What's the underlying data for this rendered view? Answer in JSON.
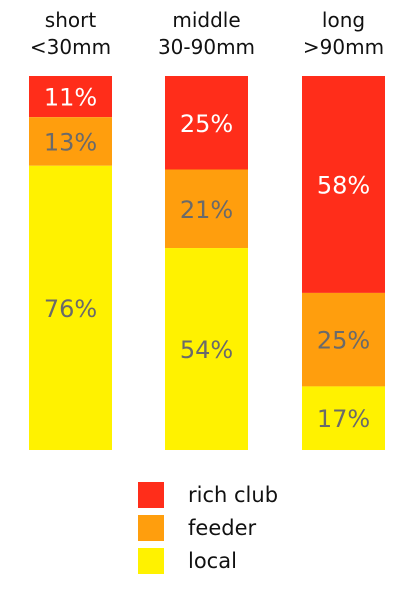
{
  "chart_data": {
    "type": "bar",
    "stacked": true,
    "percent_stacked": true,
    "categories": [
      [
        "short",
        "<30mm"
      ],
      [
        "middle",
        "30-90mm"
      ],
      [
        "long",
        ">90mm"
      ]
    ],
    "series": [
      {
        "name": "rich club",
        "color": "#ff2d1a",
        "values": [
          11,
          25,
          58
        ],
        "labels": [
          "11%",
          "25%",
          "58%"
        ]
      },
      {
        "name": "feeder",
        "color": "#ff9e0d",
        "values": [
          13,
          21,
          25
        ],
        "labels": [
          "13%",
          "21%",
          "25%"
        ]
      },
      {
        "name": "local",
        "color": "#fff200",
        "values": [
          76,
          54,
          17
        ],
        "labels": [
          "76%",
          "54%",
          "17%"
        ]
      }
    ],
    "stack_order": "rich club on top",
    "ylim": [
      0,
      100
    ],
    "grid": false,
    "legend_position": "bottom-center",
    "title": "",
    "xlabel": "",
    "ylabel": ""
  }
}
